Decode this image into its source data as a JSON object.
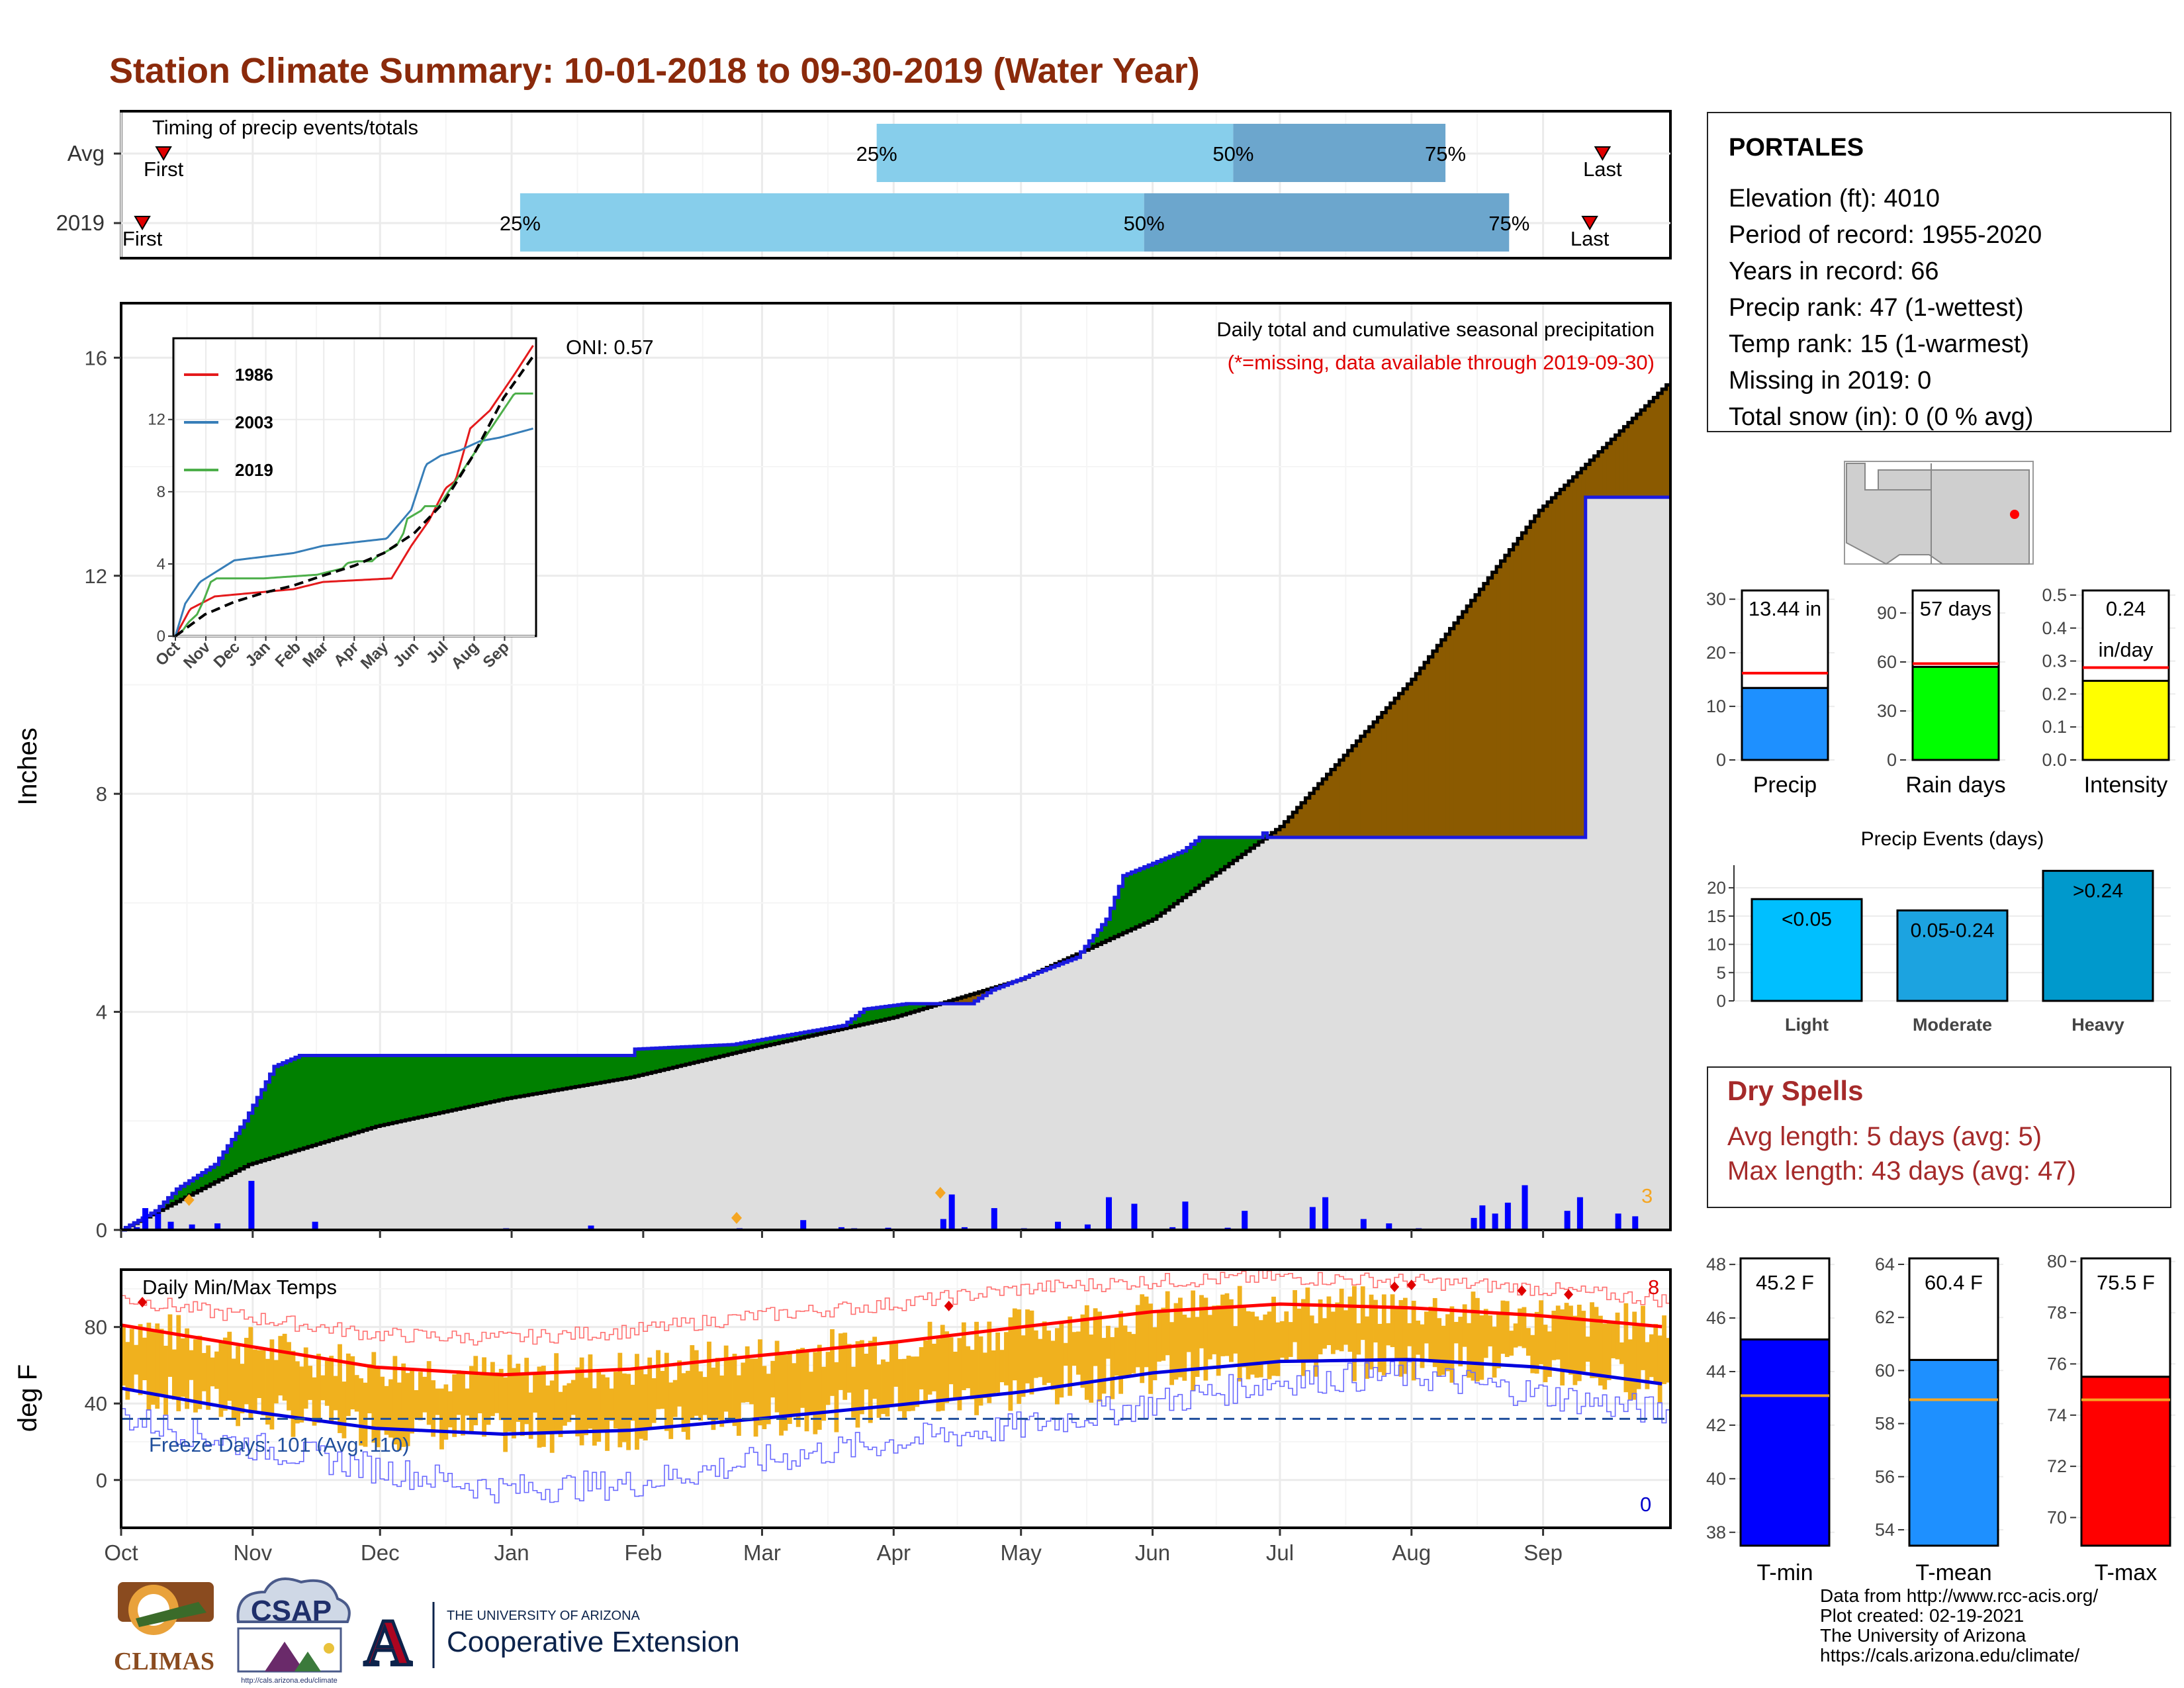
{
  "title": "Station Climate Summary: 10-01-2018 to 09-30-2019 (Water Year)",
  "months": [
    "Oct",
    "Nov",
    "Dec",
    "Jan",
    "Feb",
    "Mar",
    "Apr",
    "May",
    "Jun",
    "Jul",
    "Aug",
    "Sep"
  ],
  "timing": {
    "label": "Timing of precip events/totals",
    "rows": [
      "Avg",
      "2019"
    ],
    "first_label": "First",
    "last_label": "Last",
    "pct_labels": [
      "25%",
      "50%",
      "75%"
    ],
    "avg": {
      "first_day": 10,
      "q25_day": 178,
      "q50_day": 262,
      "q75_day": 312,
      "last_day": 349
    },
    "y2019": {
      "first_day": 5,
      "q25_day": 94,
      "q50_day": 241,
      "q75_day": 327,
      "last_day": 346
    }
  },
  "station": {
    "name": "PORTALES",
    "lines": [
      "Elevation (ft): 4010",
      "Period of record: 1955-2020",
      "Years in record: 66",
      "Precip rank: 47 (1-wettest)",
      "Temp rank: 15 (1-warmest)",
      "Missing in 2019: 0",
      "Total snow (in): 0 (0 % avg)"
    ]
  },
  "precip_panel": {
    "ylabel": "Inches",
    "yticks": [
      0,
      4,
      8,
      12,
      16
    ],
    "annot_title": "Daily total and cumulative seasonal precipitation",
    "annot_missing": "(*=missing, data available through 2019-09-30)",
    "oni_label": "ONI: 0.57",
    "count_label": "3"
  },
  "inset": {
    "yticks": [
      0,
      4,
      8,
      12
    ],
    "legend": [
      {
        "label": "1986",
        "color": "#e41a1c"
      },
      {
        "label": "2003",
        "color": "#377eb8"
      },
      {
        "label": "2019",
        "color": "#4daf4a"
      }
    ]
  },
  "temp_panel": {
    "ylabel": "deg F",
    "yticks": [
      0,
      40,
      80
    ],
    "label": "Daily Min/Max Temps",
    "freeze_label": "Freeze Days: 101 (Avg: 110)",
    "max_count": "8",
    "min_count": "0"
  },
  "bars_top": [
    {
      "key": "precip",
      "value_label": "13.44 in",
      "xlabel": "Precip",
      "yticks": [
        "0",
        "10",
        "20",
        "30"
      ],
      "color": "#1e90ff"
    },
    {
      "key": "raindays",
      "value_label": "57 days",
      "xlabel": "Rain days",
      "yticks": [
        "0",
        "30",
        "60",
        "90"
      ],
      "color": "#00ff00"
    },
    {
      "key": "intensity",
      "value_label": "0.24",
      "value_label2": "in/day",
      "xlabel": "Intensity",
      "yticks": [
        "0.0",
        "0.1",
        "0.2",
        "0.3",
        "0.4",
        "0.5"
      ],
      "color": "#ffff00"
    }
  ],
  "events": {
    "title": "Precip Events (days)",
    "yticks": [
      "0",
      "5",
      "10",
      "15",
      "20"
    ],
    "bars": [
      {
        "label": "<0.05",
        "xlabel": "Light",
        "color": "#00bfff"
      },
      {
        "label": "0.05-0.24",
        "xlabel": "Moderate",
        "color": "#1ca3e0"
      },
      {
        "label": ">0.24",
        "xlabel": "Heavy",
        "color": "#0099cc"
      }
    ]
  },
  "dry_spells": {
    "title": "Dry Spells",
    "lines": [
      "Avg length: 5 days (avg: 5)",
      "Max length: 43 days (avg: 47)"
    ]
  },
  "temp_bars": [
    {
      "value_label": "45.2 F",
      "xlabel": "T-min",
      "yticks": [
        "38",
        "40",
        "42",
        "44",
        "46",
        "48"
      ],
      "color": "#0000ff"
    },
    {
      "value_label": "60.4 F",
      "xlabel": "T-mean",
      "yticks": [
        "54",
        "56",
        "58",
        "60",
        "62",
        "64"
      ],
      "color": "#1e90ff"
    },
    {
      "value_label": "75.5 F",
      "xlabel": "T-max",
      "yticks": [
        "70",
        "72",
        "74",
        "76",
        "78",
        "80"
      ],
      "color": "#ff0000"
    }
  ],
  "footer": {
    "lines": [
      "Data from http://www.rcc-acis.org/",
      "Plot created: 02-19-2021",
      "The University of Arizona",
      "https://cals.arizona.edu/climate/"
    ],
    "logos": {
      "climas": "CLIMAS",
      "csap": "CSAP",
      "csap_url": "http://cals.arizona.edu/climate",
      "ua_small": "THE UNIVERSITY OF ARIZONA",
      "ua_big": "Cooperative Extension"
    }
  },
  "chart_data": {
    "type": "area",
    "title": "Station Climate Summary: 10-01-2018 to 09-30-2019 (Water Year)",
    "ylabel": "Inches",
    "ylim": [
      0,
      17
    ],
    "x_unit": "day of water year (Oct 1 = 0)",
    "series": [
      {
        "name": "2019",
        "x": [
          0,
          8,
          13,
          22,
          29,
          36,
          42,
          48,
          90,
          130,
          144,
          170,
          175,
          185,
          200,
          205,
          225,
          232,
          236,
          250,
          254,
          268,
          345,
          364
        ],
        "values": [
          0,
          0.35,
          0.75,
          1.2,
          2.0,
          3.0,
          3.2,
          3.2,
          3.2,
          3.35,
          3.4,
          3.75,
          4.05,
          4.15,
          4.15,
          4.4,
          5.0,
          5.7,
          6.5,
          6.95,
          7.2,
          7.2,
          13.44,
          13.44
        ]
      },
      {
        "name": "Avg",
        "x": [
          0,
          30,
          60,
          90,
          120,
          150,
          182,
          212,
          243,
          273,
          304,
          334,
          364
        ],
        "values": [
          0,
          1.2,
          1.9,
          2.4,
          2.8,
          3.35,
          3.9,
          4.6,
          5.7,
          7.4,
          10.1,
          13.2,
          15.5
        ]
      }
    ],
    "daily_precip": {
      "x": [
        3,
        5,
        8,
        11,
        16,
        22,
        30,
        45,
        90,
        110,
        145,
        160,
        169,
        172,
        180,
        193,
        195,
        198,
        205,
        212,
        220,
        227,
        232,
        238,
        247,
        250,
        260,
        264,
        280,
        283,
        292,
        298,
        305,
        318,
        320,
        323,
        330,
        326,
        340,
        343,
        352,
        356
      ],
      "values": [
        0.05,
        0.4,
        0.3,
        0.15,
        0.1,
        0.12,
        0.9,
        0.15,
        0.03,
        0.08,
        0.03,
        0.18,
        0.05,
        0.03,
        0.04,
        0.2,
        0.65,
        0.05,
        0.4,
        0.03,
        0.15,
        0.1,
        0.6,
        0.48,
        0.05,
        0.52,
        0.04,
        0.35,
        0.42,
        0.6,
        0.2,
        0.12,
        0.03,
        0.22,
        0.45,
        0.3,
        0.82,
        0.5,
        0.35,
        0.6,
        0.3,
        0.25
      ]
    },
    "inset": {
      "type": "line",
      "xlabel": "",
      "categories": [
        "Oct",
        "Nov",
        "Dec",
        "Jan",
        "Feb",
        "Mar",
        "Apr",
        "May",
        "Jun",
        "Jul",
        "Aug",
        "Sep"
      ],
      "ylim": [
        0,
        16.5
      ],
      "series": [
        {
          "name": "1986",
          "x": [
            0,
            15,
            40,
            120,
            150,
            220,
            240,
            258,
            275,
            285,
            300,
            320,
            345,
            364
          ],
          "values": [
            0,
            1.5,
            2.2,
            2.6,
            3.0,
            3.2,
            5.0,
            6.4,
            8.2,
            8.6,
            11.5,
            12.5,
            14.5,
            16.1
          ]
        },
        {
          "name": "2003",
          "x": [
            0,
            10,
            25,
            60,
            120,
            150,
            215,
            240,
            255,
            270,
            290,
            310,
            330,
            364
          ],
          "values": [
            0,
            1.8,
            3.0,
            4.2,
            4.6,
            5.0,
            5.4,
            7.0,
            9.5,
            10.0,
            10.3,
            10.8,
            11.0,
            11.5
          ]
        },
        {
          "name": "2019",
          "x": [
            0,
            8,
            13,
            22,
            29,
            36,
            42,
            48,
            90,
            130,
            144,
            170,
            175,
            185,
            200,
            205,
            225,
            232,
            236,
            250,
            254,
            268,
            345,
            364
          ],
          "values": [
            0,
            0.35,
            0.75,
            1.2,
            2.0,
            3.0,
            3.2,
            3.2,
            3.2,
            3.35,
            3.4,
            3.75,
            4.05,
            4.15,
            4.15,
            4.4,
            5.0,
            5.7,
            6.5,
            6.95,
            7.2,
            7.2,
            13.44,
            13.44
          ]
        },
        {
          "name": "Avg",
          "x": [
            0,
            30,
            60,
            90,
            120,
            150,
            182,
            212,
            243,
            273,
            304,
            334,
            364
          ],
          "values": [
            0,
            1.2,
            1.9,
            2.4,
            2.8,
            3.35,
            3.9,
            4.6,
            5.7,
            7.4,
            10.1,
            13.2,
            15.5
          ]
        }
      ]
    },
    "temps": {
      "ylabel": "deg F",
      "ylim": [
        -25,
        110
      ],
      "avg_max": {
        "x": [
          0,
          30,
          60,
          90,
          120,
          150,
          182,
          212,
          243,
          273,
          304,
          334,
          364
        ],
        "values": [
          81,
          70,
          59,
          55,
          58,
          65,
          72,
          80,
          88,
          92,
          90,
          86,
          80
        ]
      },
      "avg_min": {
        "x": [
          0,
          30,
          60,
          90,
          120,
          150,
          182,
          212,
          243,
          273,
          304,
          334,
          364
        ],
        "values": [
          48,
          36,
          27,
          24,
          26,
          32,
          39,
          46,
          56,
          62,
          63,
          59,
          50
        ]
      },
      "record_max": {
        "x": [
          0,
          30,
          60,
          90,
          120,
          150,
          182,
          212,
          243,
          273,
          304,
          334,
          364
        ],
        "values": [
          95,
          85,
          76,
          74,
          78,
          86,
          92,
          100,
          104,
          106,
          104,
          100,
          94
        ]
      },
      "record_min": {
        "x": [
          0,
          30,
          60,
          90,
          120,
          150,
          182,
          212,
          243,
          273,
          304,
          334,
          364
        ],
        "values": [
          33,
          18,
          6,
          -5,
          -2,
          10,
          20,
          28,
          40,
          52,
          55,
          45,
          35
        ]
      },
      "freeze_line": 32
    },
    "station_bars": {
      "precip": {
        "value": 13.44,
        "avg": 16.2,
        "ylim": [
          0,
          32
        ]
      },
      "rain_days": {
        "value": 57,
        "avg": 59,
        "ylim": [
          0,
          105
        ]
      },
      "intensity": {
        "value": 0.24,
        "avg": 0.28,
        "ylim": [
          0,
          0.52
        ]
      },
      "events_days": {
        "categories": [
          "Light",
          "Moderate",
          "Heavy"
        ],
        "values": [
          18,
          16,
          23
        ],
        "ylim": [
          0,
          24
        ]
      },
      "t_min": {
        "value": 45.2,
        "avg": 43.1,
        "ylim": [
          37.5,
          48.3
        ]
      },
      "t_mean": {
        "value": 60.4,
        "avg": 58.9,
        "ylim": [
          53.4,
          64.3
        ]
      },
      "t_max": {
        "value": 75.5,
        "avg": 74.6,
        "ylim": [
          68.9,
          80.2
        ]
      }
    }
  }
}
